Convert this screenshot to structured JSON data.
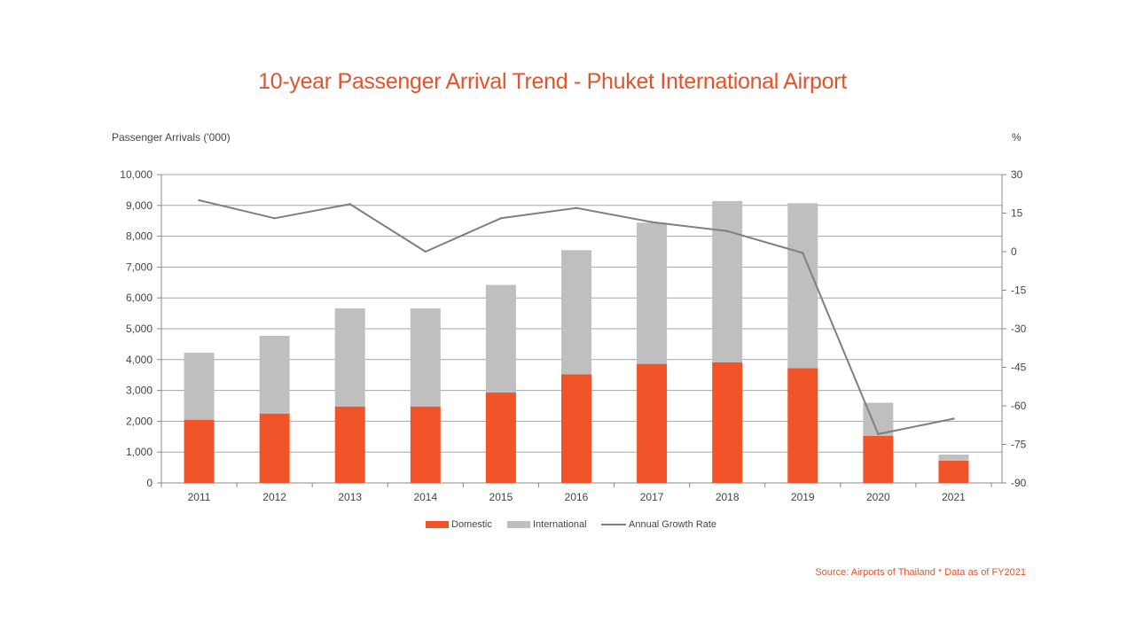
{
  "chart_data": {
    "type": "bar",
    "stacked": true,
    "title": "10-year Passenger Arrival Trend - Phuket International Airport",
    "ylabel": "Passenger Arrivals ('000)",
    "y2label": "%",
    "categories": [
      "2011",
      "2012",
      "2013",
      "2014",
      "2015",
      "2016",
      "2017",
      "2018",
      "2019",
      "2020",
      "2021"
    ],
    "ylim": [
      0,
      10000
    ],
    "yticks": [
      0,
      1000,
      2000,
      3000,
      4000,
      5000,
      6000,
      7000,
      8000,
      9000,
      10000
    ],
    "ytick_labels": [
      "0",
      "1,000",
      "2,000",
      "3,000",
      "4,000",
      "5,000",
      "6,000",
      "7,000",
      "8,000",
      "9,000",
      "10,000"
    ],
    "y2lim": [
      -90,
      30
    ],
    "y2ticks": [
      30,
      15,
      0,
      -15,
      -30,
      -45,
      -60,
      -75,
      -90
    ],
    "y2tick_labels": [
      "30",
      "15",
      "0",
      "-15",
      "-30",
      "-45",
      "-60",
      "-75",
      "-90"
    ],
    "series": [
      {
        "name": "Domestic",
        "kind": "bar",
        "color": "#f05428",
        "values": [
          2050,
          2250,
          2480,
          2480,
          2930,
          3520,
          3860,
          3910,
          3720,
          1530,
          720
        ]
      },
      {
        "name": "International",
        "kind": "bar",
        "color": "#bfbfbf",
        "values": [
          2170,
          2520,
          3180,
          3180,
          3490,
          4030,
          4580,
          5230,
          5350,
          1070,
          200
        ]
      },
      {
        "name": "Annual Growth Rate",
        "kind": "line",
        "axis": "right",
        "color": "#7f7f7f",
        "values": [
          20,
          13,
          18.5,
          0,
          13,
          17,
          11.5,
          8,
          -0.5,
          -71,
          -65
        ]
      }
    ],
    "legend": [
      "Domestic",
      "International",
      "Annual Growth Rate"
    ],
    "legend_position": "bottom"
  },
  "source": "Source: Airports of Thailand * Data as of FY2021"
}
